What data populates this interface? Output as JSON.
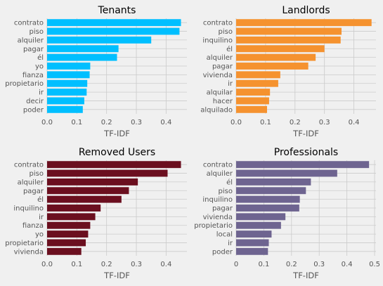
{
  "chart_data": [
    {
      "type": "bar",
      "orientation": "horizontal",
      "title": "Tenants",
      "xlabel": "TF-IDF",
      "color": "#00bfff",
      "xlim": [
        0,
        0.47
      ],
      "xticks": [
        "0.0",
        "0.1",
        "0.2",
        "0.3",
        "0.4"
      ],
      "categories": [
        "contrato",
        "piso",
        "alquiler",
        "pagar",
        "él",
        "yo",
        "fianza",
        "propietario",
        "ir",
        "decir",
        "poder"
      ],
      "values": [
        0.45,
        0.445,
        0.35,
        0.24,
        0.235,
        0.145,
        0.143,
        0.135,
        0.133,
        0.125,
        0.12
      ]
    },
    {
      "type": "bar",
      "orientation": "horizontal",
      "title": "Landlords",
      "xlabel": "TF-IDF",
      "color": "#f5922f",
      "xlim": [
        0,
        0.475
      ],
      "xticks": [
        "0.0",
        "0.1",
        "0.2",
        "0.3",
        "0.4"
      ],
      "categories": [
        "contrato",
        "piso",
        "inquilino",
        "él",
        "alquiler",
        "pagar",
        "vivienda",
        "ir",
        "alquilar",
        "hacer",
        "alquilado"
      ],
      "values": [
        0.46,
        0.358,
        0.355,
        0.3,
        0.27,
        0.245,
        0.15,
        0.143,
        0.115,
        0.112,
        0.105
      ]
    },
    {
      "type": "bar",
      "orientation": "horizontal",
      "title": "Removed Users",
      "xlabel": "TF-IDF",
      "color": "#6b0f1f",
      "xlim": [
        0,
        0.47
      ],
      "xticks": [
        "0.0",
        "0.1",
        "0.2",
        "0.3",
        "0.4"
      ],
      "categories": [
        "contrato",
        "piso",
        "alquiler",
        "pagar",
        "él",
        "inquilino",
        "ir",
        "fianza",
        "yo",
        "propietario",
        "vivienda"
      ],
      "values": [
        0.45,
        0.405,
        0.305,
        0.275,
        0.25,
        0.18,
        0.162,
        0.145,
        0.138,
        0.13,
        0.115
      ]
    },
    {
      "type": "bar",
      "orientation": "horizontal",
      "title": "Professionals",
      "xlabel": "TF-IDF",
      "color": "#6e6490",
      "xlim": [
        0,
        0.505
      ],
      "xticks": [
        "0",
        "0.1",
        "0.2",
        "0.3",
        "0.4",
        "0.5"
      ],
      "categories": [
        "contrato",
        "alquiler",
        "él",
        "piso",
        "inquilino",
        "pagar",
        "vivienda",
        "propietario",
        "local",
        "ir",
        "poder"
      ],
      "values": [
        0.48,
        0.365,
        0.27,
        0.252,
        0.23,
        0.228,
        0.178,
        0.162,
        0.128,
        0.118,
        0.115
      ]
    }
  ]
}
